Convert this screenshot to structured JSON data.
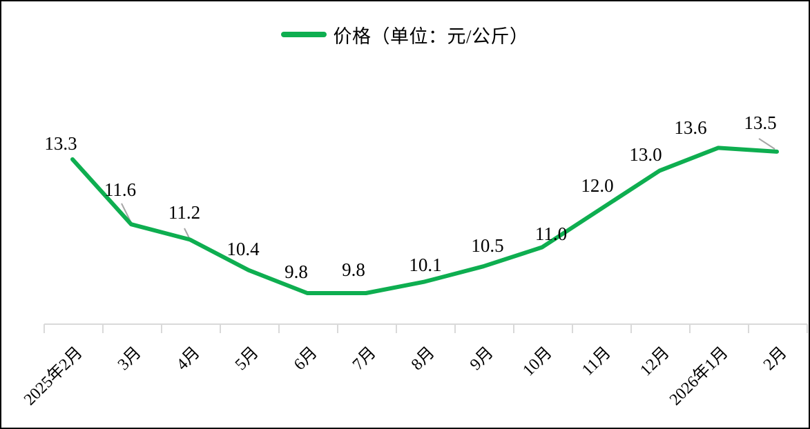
{
  "page": {
    "background": "#ffffff",
    "border_color": "#000000"
  },
  "legend": {
    "label": "价格（单位：元/公斤）",
    "swatch_color": "#0eae50",
    "position": "top-center"
  },
  "chart_data": {
    "type": "line",
    "title": "",
    "xlabel": "",
    "ylabel": "",
    "categories": [
      "2025年2月",
      "3月",
      "4月",
      "5月",
      "6月",
      "7月",
      "8月",
      "9月",
      "10月",
      "11月",
      "12月",
      "2026年1月",
      "2月"
    ],
    "series": [
      {
        "name": "价格（单位：元/公斤）",
        "values": [
          13.3,
          11.6,
          11.2,
          10.4,
          9.8,
          9.8,
          10.1,
          10.5,
          11.0,
          12.0,
          13.0,
          13.6,
          13.5
        ]
      }
    ],
    "unit": "元/公斤",
    "data_labels_shown": true,
    "grid": false,
    "legend_position": "top",
    "line_color": "#0eae50",
    "axis_color": "#d9d9d9",
    "leader_line_color": "#a6a6a6",
    "label_text_color": "#000000"
  }
}
